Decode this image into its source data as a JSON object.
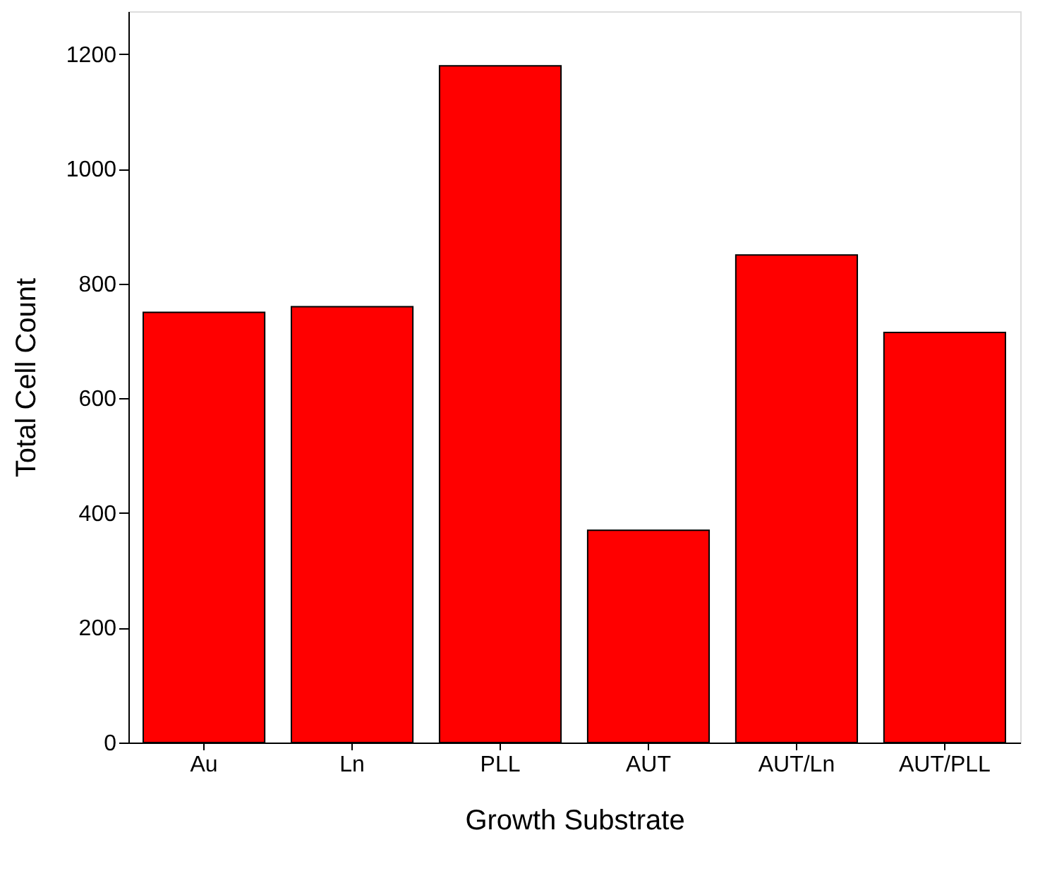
{
  "chart_data": {
    "type": "bar",
    "xlabel": "Growth Substrate",
    "ylabel": "Total Cell Count",
    "categories": [
      "Au",
      "Ln",
      "PLL",
      "AUT",
      "AUT/Ln",
      "AUT/PLL"
    ],
    "values": [
      750,
      760,
      1180,
      370,
      850,
      715
    ],
    "color": "#ff0000",
    "ylim": [
      0,
      1275
    ],
    "yticks": [
      0,
      200,
      400,
      600,
      800,
      1000,
      1200
    ],
    "grid": false
  }
}
